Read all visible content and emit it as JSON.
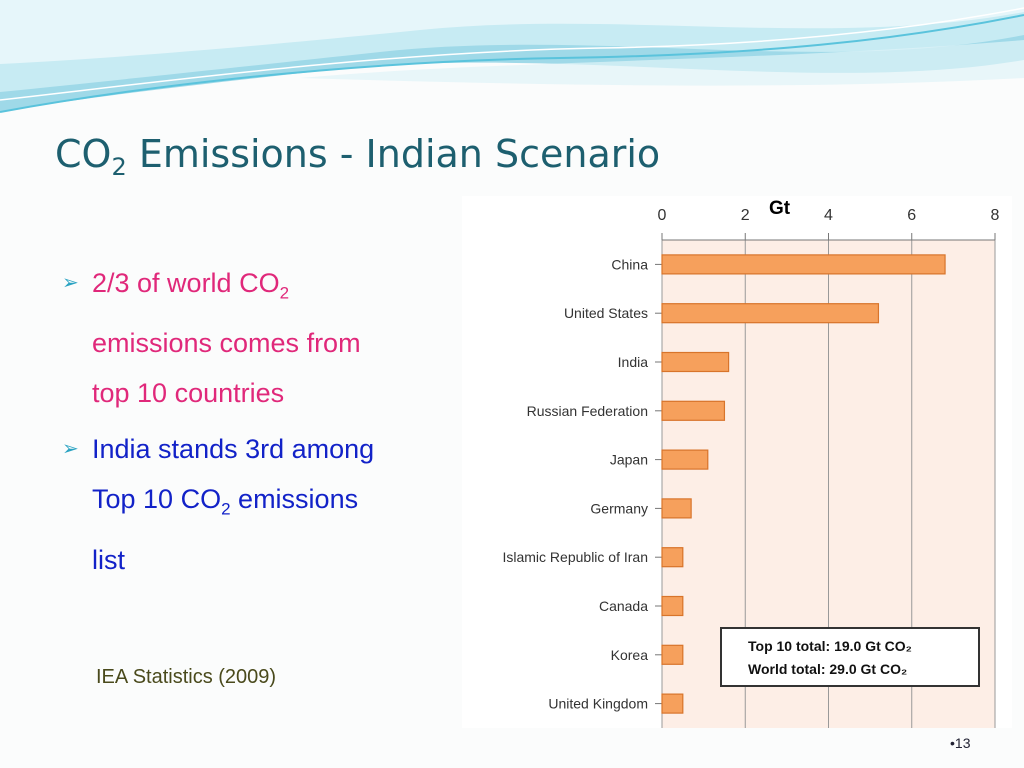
{
  "slide": {
    "title_main": "CO",
    "title_sub": "2",
    "title_rest": " Emissions - Indian Scenario",
    "bullets": [
      {
        "l1_a": "2/3 of world CO",
        "l1_sub": "2",
        "l2": "emissions comes from",
        "l3": "top 10 countries"
      },
      {
        "l1": "India stands 3rd among",
        "l2_a": "Top 10 CO",
        "l2_sub": "2",
        "l2_b": " emissions",
        "l3": "list"
      }
    ],
    "source": "IEA Statistics (2009)",
    "page_number": "•13"
  },
  "colors": {
    "bar_fill": "#f6a05c",
    "bar_stroke": "#d8742b",
    "plot_bg": "#fdeee6",
    "title": "#1d5f6f",
    "bullet_pink": "#e0287a",
    "bullet_blue": "#1222c8"
  },
  "chart_data": {
    "type": "bar",
    "orientation": "horizontal",
    "unit_label": "Gt",
    "categories": [
      "China",
      "United States",
      "India",
      "Russian Federation",
      "Japan",
      "Germany",
      "Islamic Republic of Iran",
      "Canada",
      "Korea",
      "United Kingdom"
    ],
    "values": [
      6.8,
      5.2,
      1.6,
      1.5,
      1.1,
      0.7,
      0.5,
      0.5,
      0.5,
      0.5
    ],
    "xlim": [
      0,
      8
    ],
    "xticks": [
      "0",
      "2",
      "4",
      "6",
      "8"
    ],
    "grid": true,
    "legend_box": {
      "line1": "Top 10 total:  19.0 Gt CO₂",
      "line2": "World total:    29.0 Gt CO₂"
    }
  }
}
